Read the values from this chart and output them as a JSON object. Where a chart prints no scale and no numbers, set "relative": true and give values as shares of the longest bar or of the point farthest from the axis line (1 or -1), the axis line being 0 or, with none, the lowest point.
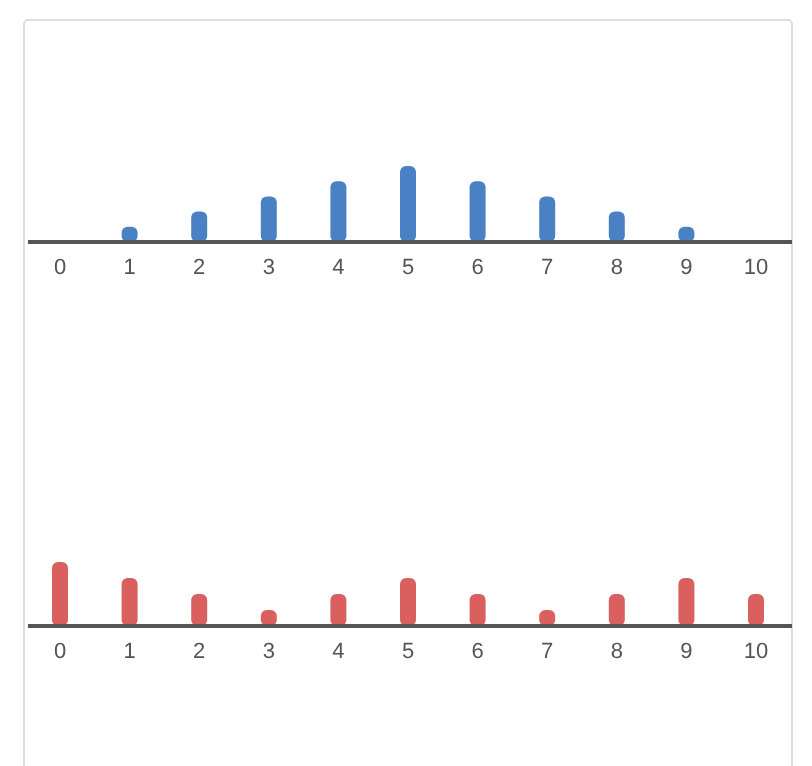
{
  "chart_data": [
    {
      "type": "bar",
      "relative": true,
      "categories": [
        "0",
        "1",
        "2",
        "3",
        "4",
        "5",
        "6",
        "7",
        "8",
        "9",
        "10"
      ],
      "values": [
        0,
        0.2,
        0.4,
        0.6,
        0.8,
        1,
        0.8,
        0.6,
        0.4,
        0.2,
        0
      ],
      "color": "#4a80c4"
    },
    {
      "type": "bar",
      "relative": true,
      "categories": [
        "0",
        "1",
        "2",
        "3",
        "4",
        "5",
        "6",
        "7",
        "8",
        "9",
        "10"
      ],
      "values": [
        1,
        0.75,
        0.5,
        0.25,
        0.5,
        0.75,
        0.5,
        0.25,
        0.5,
        0.75,
        0.5
      ],
      "color": "#d9605f"
    }
  ]
}
